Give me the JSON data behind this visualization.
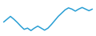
{
  "y_values": [
    0.48,
    0.55,
    0.62,
    0.55,
    0.47,
    0.38,
    0.3,
    0.33,
    0.27,
    0.33,
    0.38,
    0.33,
    0.28,
    0.33,
    0.42,
    0.52,
    0.62,
    0.7,
    0.78,
    0.83,
    0.8,
    0.75,
    0.8,
    0.84,
    0.8,
    0.76,
    0.8
  ],
  "line_color": "#2a9fd4",
  "linewidth": 1.1,
  "background_color": "#ffffff"
}
